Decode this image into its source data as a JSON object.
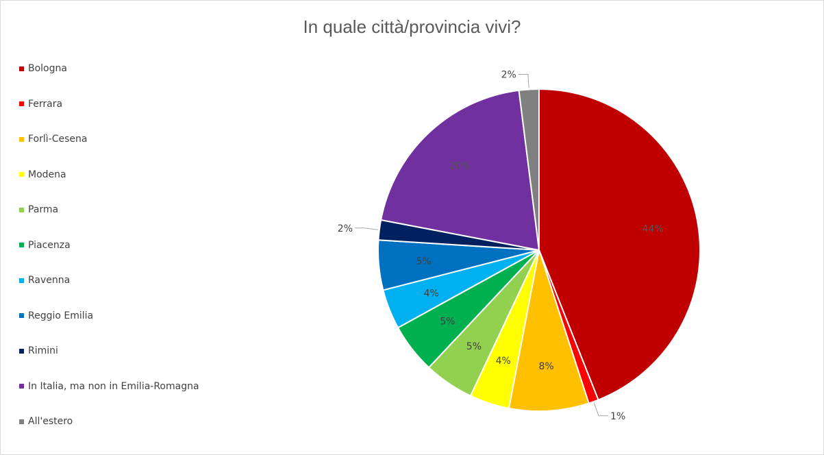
{
  "chart_data": {
    "type": "pie",
    "title": "In quale città/provincia vivi?",
    "slices": [
      {
        "name": "Bologna",
        "value": 44,
        "label": "44%",
        "color": "#C00000"
      },
      {
        "name": "Ferrara",
        "value": 1,
        "label": "1%",
        "color": "#FF0000"
      },
      {
        "name": "Forlì-Cesena",
        "value": 8,
        "label": "8%",
        "color": "#FFC000"
      },
      {
        "name": "Modena",
        "value": 4,
        "label": "4%",
        "color": "#FFFF00"
      },
      {
        "name": "Parma",
        "value": 5,
        "label": "5%",
        "color": "#92D050"
      },
      {
        "name": "Piacenza",
        "value": 5,
        "label": "5%",
        "color": "#00B050"
      },
      {
        "name": "Ravenna",
        "value": 4,
        "label": "4%",
        "color": "#00B0F0"
      },
      {
        "name": "Reggio Emilia",
        "value": 5,
        "label": "5%",
        "color": "#0070C0"
      },
      {
        "name": "Rimini",
        "value": 2,
        "label": "2%",
        "color": "#002060"
      },
      {
        "name": "In Italia, ma non in Emilia-Romagna",
        "value": 20,
        "label": "20%",
        "color": "#7030A0"
      },
      {
        "name": "All'estero",
        "value": 2,
        "label": "2%",
        "color": "#808080"
      }
    ],
    "legend_position": "left"
  }
}
